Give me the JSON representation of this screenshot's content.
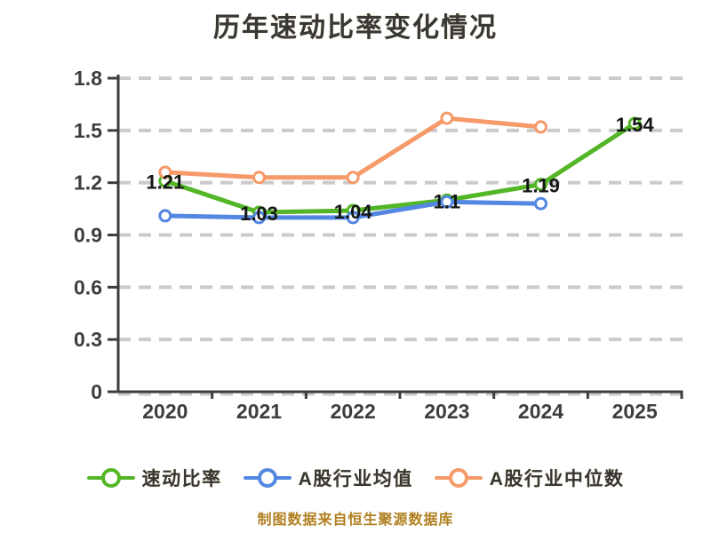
{
  "page": {
    "background": "#ffffff"
  },
  "chart_data": {
    "type": "line",
    "title": "历年速动比率变化情况",
    "categories": [
      "2020",
      "2021",
      "2022",
      "2023",
      "2024",
      "2025"
    ],
    "xlabel": "",
    "ylabel": "",
    "ylim": [
      0,
      1.8
    ],
    "yticks": [
      0,
      0.3,
      0.6,
      0.9,
      1.2,
      1.5,
      1.8
    ],
    "grid": "horizontal-dashed",
    "legend_position": "bottom",
    "series": [
      {
        "key": "quick-ratio",
        "name": "速动比率",
        "color": "#53b626",
        "values": [
          1.21,
          1.03,
          1.04,
          1.1,
          1.19,
          1.54
        ],
        "point_labels": [
          "1.21",
          "1.03",
          "1.04",
          "1.1",
          "1.19",
          "1.54"
        ]
      },
      {
        "key": "industry-mean",
        "name": "A股行业均值",
        "color": "#5387e2",
        "values": [
          1.01,
          1.0,
          1.0,
          1.09,
          1.08,
          null
        ],
        "point_labels": null
      },
      {
        "key": "industry-median",
        "name": "A股行业中位数",
        "color": "#f69a6a",
        "values": [
          1.26,
          1.23,
          1.23,
          1.57,
          1.52,
          null
        ],
        "point_labels": null
      }
    ]
  },
  "colors": {
    "title": "#383838",
    "axis": "#3d3d3d",
    "grid": "#cbcbcb",
    "tick_label": "#3d3d3d",
    "data_label": "#161616",
    "marker_fill": "#ffffff",
    "source_note": "#b08020"
  },
  "source_note": "制图数据来自恒生聚源数据库"
}
